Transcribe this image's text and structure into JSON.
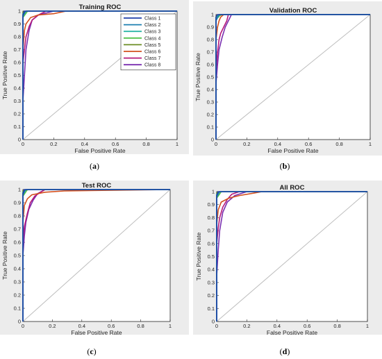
{
  "chart_data": [
    {
      "type": "line",
      "title": "Training ROC",
      "xlabel": "False Positive Rate",
      "ylabel": "True Positive Rate",
      "caption_letter": "a",
      "xlim": [
        0,
        1
      ],
      "ylim": [
        0,
        1
      ],
      "xticks": [
        "0",
        "0.2",
        "0.4",
        "0.6",
        "0.8",
        "1"
      ],
      "yticks": [
        "0",
        "0.1",
        "0.2",
        "0.3",
        "0.4",
        "0.5",
        "0.6",
        "0.7",
        "0.8",
        "0.9",
        "1"
      ],
      "legend": "top-right",
      "grid": false,
      "diagonal": true,
      "series": [
        {
          "name": "Class 1",
          "color": "#1f3fa8",
          "x": [
            0,
            0,
            0.01,
            1
          ],
          "y": [
            0,
            0.97,
            1,
            1
          ]
        },
        {
          "name": "Class 2",
          "color": "#1c7fb0",
          "x": [
            0,
            0,
            0.02,
            1
          ],
          "y": [
            0,
            0.96,
            1,
            1
          ]
        },
        {
          "name": "Class 3",
          "color": "#2bb5a6",
          "x": [
            0,
            0,
            0.02,
            1
          ],
          "y": [
            0,
            0.98,
            1,
            1
          ]
        },
        {
          "name": "Class 4",
          "color": "#52c24a",
          "x": [
            0,
            0,
            0.03,
            1
          ],
          "y": [
            0,
            0.95,
            1,
            1
          ]
        },
        {
          "name": "Class 5",
          "color": "#6b8e23",
          "x": [
            0,
            0,
            0.03,
            1
          ],
          "y": [
            0,
            0.99,
            1,
            1
          ]
        },
        {
          "name": "Class 6",
          "color": "#d2501e",
          "x": [
            0,
            0,
            0.01,
            0.02,
            0.05,
            0.1,
            0.2,
            0.28,
            1
          ],
          "y": [
            0,
            0.7,
            0.85,
            0.9,
            0.95,
            0.97,
            0.98,
            1,
            1
          ]
        },
        {
          "name": "Class 7",
          "color": "#b5197a",
          "x": [
            0,
            0,
            0.01,
            0.02,
            0.04,
            0.06,
            0.1,
            0.15,
            1
          ],
          "y": [
            0,
            0.6,
            0.7,
            0.8,
            0.88,
            0.93,
            0.97,
            1,
            1
          ]
        },
        {
          "name": "Class 8",
          "color": "#7a2fb0",
          "x": [
            0,
            0,
            0.01,
            0.02,
            0.04,
            0.06,
            0.1,
            0.2,
            1
          ],
          "y": [
            0,
            0.3,
            0.5,
            0.7,
            0.85,
            0.93,
            0.97,
            1,
            1
          ]
        }
      ]
    },
    {
      "type": "line",
      "title": "Validation ROC",
      "xlabel": "False Positive Rate",
      "ylabel": "True Positive Rate",
      "caption_letter": "b",
      "xlim": [
        0,
        1
      ],
      "ylim": [
        0,
        1
      ],
      "xticks": [
        "0",
        "0.2",
        "0.4",
        "0.6",
        "0.8",
        "1"
      ],
      "yticks": [
        "0",
        "0.1",
        "0.2",
        "0.3",
        "0.4",
        "0.5",
        "0.6",
        "0.7",
        "0.8",
        "0.9",
        "1"
      ],
      "grid": false,
      "diagonal": true,
      "series": [
        {
          "name": "Class 1",
          "color": "#1f3fa8",
          "x": [
            0,
            0,
            0.01,
            1
          ],
          "y": [
            0,
            0.98,
            1,
            1
          ]
        },
        {
          "name": "Class 2",
          "color": "#1c7fb0",
          "x": [
            0,
            0,
            0.02,
            1
          ],
          "y": [
            0,
            0.95,
            1,
            1
          ]
        },
        {
          "name": "Class 3",
          "color": "#2bb5a6",
          "x": [
            0,
            0,
            0.02,
            1
          ],
          "y": [
            0,
            0.97,
            1,
            1
          ]
        },
        {
          "name": "Class 4",
          "color": "#52c24a",
          "x": [
            0,
            0,
            0.03,
            1
          ],
          "y": [
            0,
            0.96,
            1,
            1
          ]
        },
        {
          "name": "Class 5",
          "color": "#6b8e23",
          "x": [
            0,
            0,
            0.04,
            1
          ],
          "y": [
            0,
            0.98,
            1,
            1
          ]
        },
        {
          "name": "Class 6",
          "color": "#d2501e",
          "x": [
            0,
            0,
            0.01,
            0.02,
            0.03,
            0.05,
            1
          ],
          "y": [
            0,
            0.8,
            0.9,
            0.95,
            0.98,
            1,
            1
          ]
        },
        {
          "name": "Class 7",
          "color": "#b5197a",
          "x": [
            0,
            0,
            0.01,
            0.02,
            0.03,
            0.05,
            0.07,
            0.08,
            1
          ],
          "y": [
            0,
            0.55,
            0.7,
            0.8,
            0.85,
            0.9,
            0.95,
            1,
            1
          ]
        },
        {
          "name": "Class 8",
          "color": "#7a2fb0",
          "x": [
            0,
            0,
            0.01,
            0.02,
            0.04,
            0.06,
            0.08,
            0.1,
            1
          ],
          "y": [
            0,
            0.45,
            0.6,
            0.72,
            0.82,
            0.9,
            0.95,
            1,
            1
          ]
        }
      ]
    },
    {
      "type": "line",
      "title": "Test ROC",
      "xlabel": "False Positive Rate",
      "ylabel": "True Positive Rate",
      "caption_letter": "c",
      "xlim": [
        0,
        1
      ],
      "ylim": [
        0,
        1
      ],
      "xticks": [
        "0",
        "0.2",
        "0.4",
        "0.6",
        "0.8",
        "1"
      ],
      "yticks": [
        "0",
        "0.1",
        "0.2",
        "0.3",
        "0.4",
        "0.5",
        "0.6",
        "0.7",
        "0.8",
        "0.9",
        "1"
      ],
      "grid": false,
      "diagonal": true,
      "series": [
        {
          "name": "Class 1",
          "color": "#1f3fa8",
          "x": [
            0,
            0,
            0.01,
            1
          ],
          "y": [
            0,
            0.97,
            1,
            1
          ]
        },
        {
          "name": "Class 2",
          "color": "#1c7fb0",
          "x": [
            0,
            0,
            0.02,
            1
          ],
          "y": [
            0,
            0.96,
            1,
            1
          ]
        },
        {
          "name": "Class 3",
          "color": "#2bb5a6",
          "x": [
            0,
            0,
            0.02,
            1
          ],
          "y": [
            0,
            0.98,
            1,
            1
          ]
        },
        {
          "name": "Class 4",
          "color": "#52c24a",
          "x": [
            0,
            0,
            0.03,
            1
          ],
          "y": [
            0,
            0.95,
            1,
            1
          ]
        },
        {
          "name": "Class 5",
          "color": "#6b8e23",
          "x": [
            0,
            0,
            0.04,
            1
          ],
          "y": [
            0,
            0.99,
            1,
            1
          ]
        },
        {
          "name": "Class 6",
          "color": "#d2501e",
          "x": [
            0,
            0,
            0.01,
            0.03,
            0.06,
            0.15,
            0.28,
            1
          ],
          "y": [
            0,
            0.75,
            0.88,
            0.93,
            0.96,
            0.98,
            0.99,
            1
          ]
        },
        {
          "name": "Class 7",
          "color": "#b5197a",
          "x": [
            0,
            0,
            0.01,
            0.03,
            0.05,
            0.08,
            0.12,
            0.15,
            1
          ],
          "y": [
            0,
            0.6,
            0.72,
            0.82,
            0.9,
            0.95,
            0.98,
            1,
            1
          ]
        },
        {
          "name": "Class 8",
          "color": "#7a2fb0",
          "x": [
            0,
            0,
            0.01,
            0.02,
            0.04,
            0.07,
            0.1,
            0.15,
            1
          ],
          "y": [
            0,
            0.5,
            0.65,
            0.75,
            0.85,
            0.92,
            0.97,
            1,
            1
          ]
        }
      ]
    },
    {
      "type": "line",
      "title": "All ROC",
      "xlabel": "False Positive Rate",
      "ylabel": "True Positive Rate",
      "caption_letter": "d",
      "xlim": [
        0,
        1
      ],
      "ylim": [
        0,
        1
      ],
      "xticks": [
        "0",
        "0.2",
        "0.4",
        "0.6",
        "0.8",
        "1"
      ],
      "yticks": [
        "0",
        "0.1",
        "0.2",
        "0.3",
        "0.4",
        "0.5",
        "0.6",
        "0.7",
        "0.8",
        "0.9",
        "1"
      ],
      "grid": false,
      "diagonal": true,
      "series": [
        {
          "name": "Class 1",
          "color": "#1f3fa8",
          "x": [
            0,
            0,
            0.01,
            1
          ],
          "y": [
            0,
            0.97,
            1,
            1
          ]
        },
        {
          "name": "Class 2",
          "color": "#1c7fb0",
          "x": [
            0,
            0,
            0.02,
            1
          ],
          "y": [
            0,
            0.96,
            1,
            1
          ]
        },
        {
          "name": "Class 3",
          "color": "#2bb5a6",
          "x": [
            0,
            0,
            0.02,
            1
          ],
          "y": [
            0,
            0.98,
            1,
            1
          ]
        },
        {
          "name": "Class 4",
          "color": "#52c24a",
          "x": [
            0,
            0,
            0.03,
            1
          ],
          "y": [
            0,
            0.95,
            1,
            1
          ]
        },
        {
          "name": "Class 5",
          "color": "#6b8e23",
          "x": [
            0,
            0,
            0.03,
            1
          ],
          "y": [
            0,
            0.99,
            1,
            1
          ]
        },
        {
          "name": "Class 6",
          "color": "#d2501e",
          "x": [
            0,
            0,
            0.01,
            0.03,
            0.08,
            0.15,
            0.25,
            0.3,
            1
          ],
          "y": [
            0,
            0.75,
            0.86,
            0.92,
            0.95,
            0.97,
            0.99,
            1,
            1
          ]
        },
        {
          "name": "Class 7",
          "color": "#b5197a",
          "x": [
            0,
            0,
            0.01,
            0.02,
            0.04,
            0.07,
            0.1,
            0.15,
            1
          ],
          "y": [
            0,
            0.6,
            0.72,
            0.8,
            0.88,
            0.94,
            0.98,
            1,
            1
          ]
        },
        {
          "name": "Class 8",
          "color": "#7a2fb0",
          "x": [
            0,
            0,
            0.01,
            0.02,
            0.04,
            0.07,
            0.12,
            0.2,
            1
          ],
          "y": [
            0,
            0.35,
            0.55,
            0.7,
            0.84,
            0.92,
            0.97,
            1,
            1
          ]
        }
      ]
    }
  ]
}
